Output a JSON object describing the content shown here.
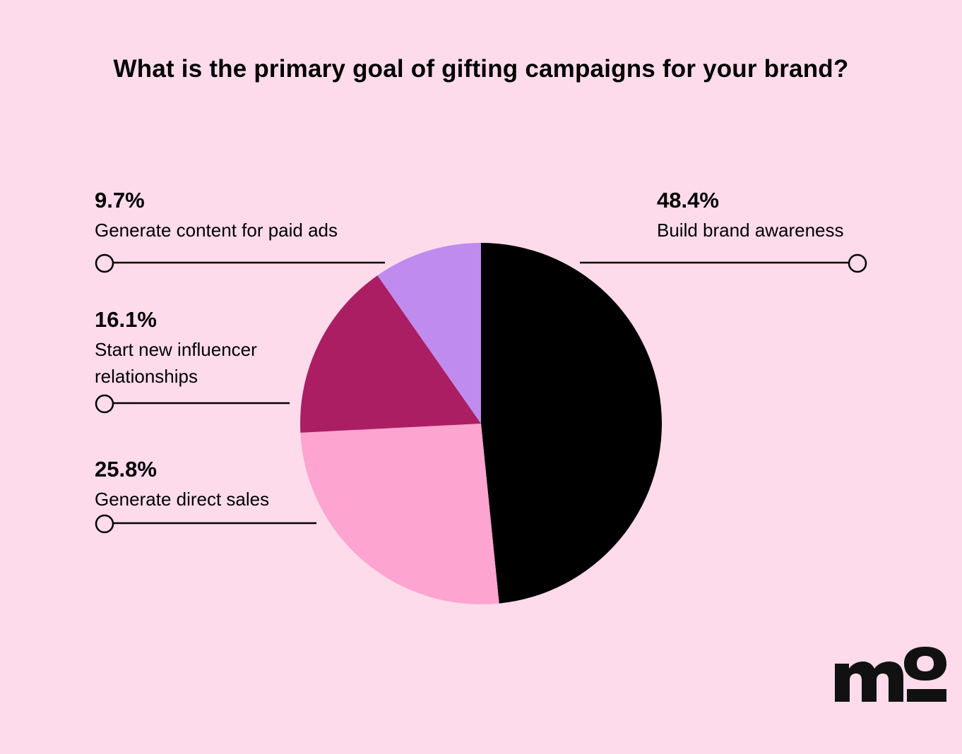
{
  "chart_data": {
    "type": "pie",
    "title": "What is the primary goal of gifting campaigns for your brand?",
    "slices": [
      {
        "label": "Build brand awareness",
        "value": 48.4,
        "display": "48.4%",
        "color": "#000000"
      },
      {
        "label": "Generate direct sales",
        "value": 25.8,
        "display": "25.8%",
        "color": "#fea4d0"
      },
      {
        "label": "Start new influencer relationships",
        "value": 16.1,
        "display": "16.1%",
        "color": "#ab1e64"
      },
      {
        "label": "Generate content for paid ads",
        "value": 9.7,
        "display": "9.7%",
        "color": "#bf8bef"
      }
    ]
  },
  "background": "#fedbeb",
  "logo": {
    "text": "mo",
    "icon": "mo-logo-icon"
  }
}
